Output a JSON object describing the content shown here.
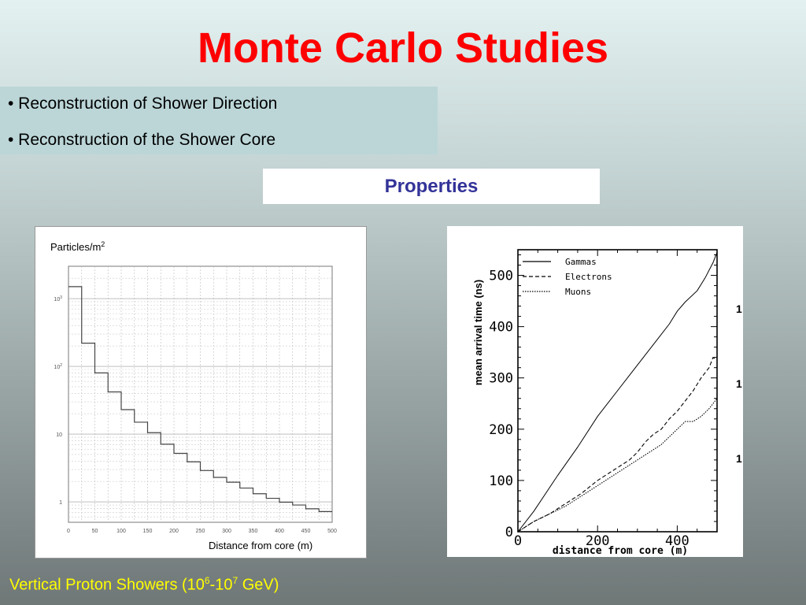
{
  "slide": {
    "title": "Monte Carlo Studies",
    "bullets": [
      "• Reconstruction of Shower Direction",
      "• Reconstruction of the Shower Core"
    ],
    "properties_label": "Properties",
    "caption_prefix": "Vertical Proton Showers (10",
    "caption_exp1": "6",
    "caption_mid": "-10",
    "caption_exp2": "7",
    "caption_suffix": " GeV)"
  },
  "colors": {
    "title": "#ff0000",
    "properties_text": "#333399",
    "caption": "#ffff00",
    "bullet_box": "#bcd6d8"
  },
  "chart_data": [
    {
      "type": "bar",
      "title": "",
      "ylabel_base": "Particles/m",
      "ylabel_sup": "2",
      "xlabel": "Distance from core (m)",
      "x_ticks": [
        "0",
        "50",
        "100",
        "150",
        "200",
        "250",
        "300",
        "350",
        "400",
        "450",
        "500"
      ],
      "y_tick_labels": [
        {
          "base": "1",
          "sup": ""
        },
        {
          "base": "10",
          "sup": ""
        },
        {
          "base": "10",
          "sup": "2"
        },
        {
          "base": "10",
          "sup": "3"
        }
      ],
      "y_scale": "log",
      "xlim": [
        0,
        500
      ],
      "ylim": [
        0.5,
        3000
      ],
      "grid": true,
      "bin_width": 25,
      "bin_edges_start": [
        0,
        25,
        50,
        75,
        100,
        125,
        150,
        175,
        200,
        225,
        250,
        275,
        300,
        325,
        350,
        375,
        400,
        425,
        450,
        475
      ],
      "values": [
        1500,
        220,
        80,
        42,
        23,
        15,
        10.5,
        7.1,
        5.2,
        3.9,
        2.9,
        2.3,
        1.95,
        1.6,
        1.32,
        1.13,
        0.99,
        0.9,
        0.79,
        0.72
      ]
    },
    {
      "type": "line",
      "xlabel": "distance from core (m)",
      "ylabel": "mean arrival time (ns)",
      "xlim": [
        0,
        500
      ],
      "ylim": [
        0,
        550
      ],
      "x_ticks": [
        "0",
        "200",
        "400"
      ],
      "y_ticks": [
        "0",
        "100",
        "200",
        "300",
        "400",
        "500"
      ],
      "legend_position": "top-left",
      "series": [
        {
          "name": "Gammas",
          "style": "solid",
          "x": [
            0,
            40,
            100,
            150,
            200,
            250,
            280,
            300,
            330,
            350,
            380,
            400,
            420,
            450,
            470,
            490,
            495,
            500
          ],
          "y": [
            0,
            40,
            110,
            165,
            225,
            275,
            305,
            325,
            355,
            375,
            405,
            430,
            448,
            470,
            495,
            525,
            535,
            545
          ]
        },
        {
          "name": "Electrons",
          "style": "dashed",
          "x": [
            0,
            40,
            80,
            120,
            160,
            200,
            240,
            280,
            300,
            320,
            340,
            360,
            380,
            400,
            420,
            440,
            460,
            480,
            490,
            500
          ],
          "y": [
            0,
            20,
            35,
            55,
            75,
            100,
            120,
            140,
            155,
            175,
            190,
            200,
            220,
            235,
            255,
            275,
            300,
            320,
            340,
            335
          ],
          "shape_note": ""
        },
        {
          "name": "Muons",
          "style": "dotted",
          "x": [
            0,
            40,
            80,
            120,
            160,
            200,
            240,
            280,
            320,
            360,
            400,
            420,
            440,
            460,
            480,
            500
          ],
          "y": [
            0,
            20,
            35,
            50,
            70,
            90,
            110,
            130,
            150,
            170,
            200,
            215,
            215,
            225,
            240,
            260
          ]
        }
      ],
      "side_marks": [
        "1",
        "1",
        "1"
      ]
    }
  ]
}
